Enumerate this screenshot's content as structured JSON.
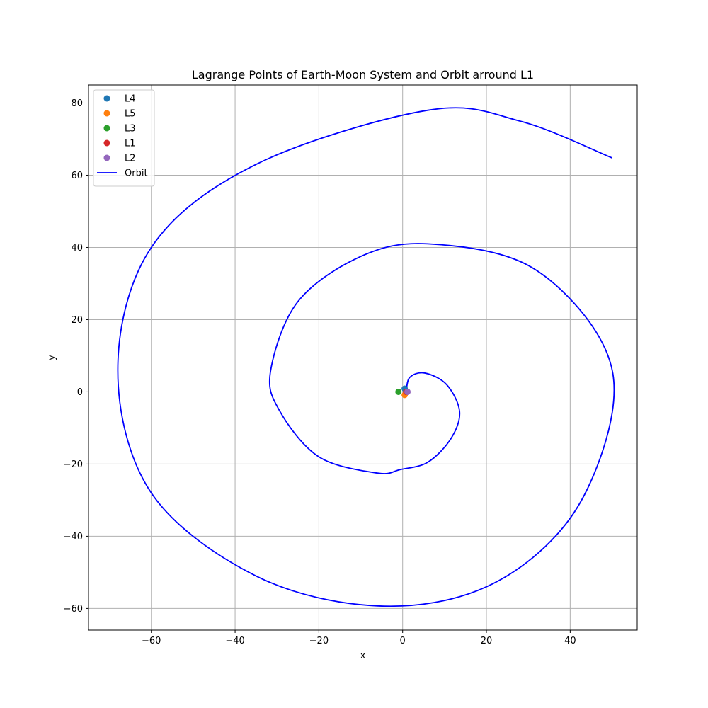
{
  "chart_data": {
    "type": "scatter",
    "title": "Lagrange Points of Earth-Moon System and Orbit arround L1",
    "xlabel": "x",
    "ylabel": "y",
    "xlim": [
      -75,
      56
    ],
    "ylim": [
      -66,
      85
    ],
    "xticks": [
      -60,
      -40,
      -20,
      0,
      20,
      40
    ],
    "yticks": [
      -60,
      -40,
      -20,
      0,
      20,
      40,
      60,
      80
    ],
    "grid": true,
    "legend_position": "upper-left",
    "points": [
      {
        "name": "L4",
        "x": 0.49,
        "y": 0.87,
        "color": "#1f77b4"
      },
      {
        "name": "L5",
        "x": 0.49,
        "y": -0.87,
        "color": "#ff7f0e"
      },
      {
        "name": "L3",
        "x": -1.0,
        "y": 0.0,
        "color": "#2ca02c"
      },
      {
        "name": "L1",
        "x": 0.84,
        "y": 0.0,
        "color": "#d62728"
      },
      {
        "name": "L2",
        "x": 1.16,
        "y": 0.0,
        "color": "#9467bd"
      }
    ],
    "orbit": {
      "name": "Orbit",
      "color": "#0000ff",
      "x": [
        0.84,
        1.7,
        5.3,
        10.5,
        13.6,
        11.5,
        6.0,
        -0.5,
        -6.0,
        -20.0,
        -29.5,
        -31.5,
        -25.0,
        -10.0,
        6.0,
        30.0,
        47.0,
        50.0,
        40.0,
        20.0,
        -6.0,
        -35.0,
        -60.0,
        -68.0,
        -60.0,
        -35.0,
        6.0,
        28.0,
        50.0
      ],
      "y": [
        0.0,
        4.0,
        5.2,
        2.0,
        -5.5,
        -13.0,
        -19.5,
        -21.5,
        -22.5,
        -18.0,
        -5.0,
        6.0,
        25.0,
        37.5,
        41.0,
        35.0,
        15.0,
        -6.0,
        -35.0,
        -54.0,
        -59.3,
        -51.0,
        -28.0,
        6.0,
        40.0,
        63.0,
        78.0,
        75.0,
        64.8
      ]
    }
  }
}
